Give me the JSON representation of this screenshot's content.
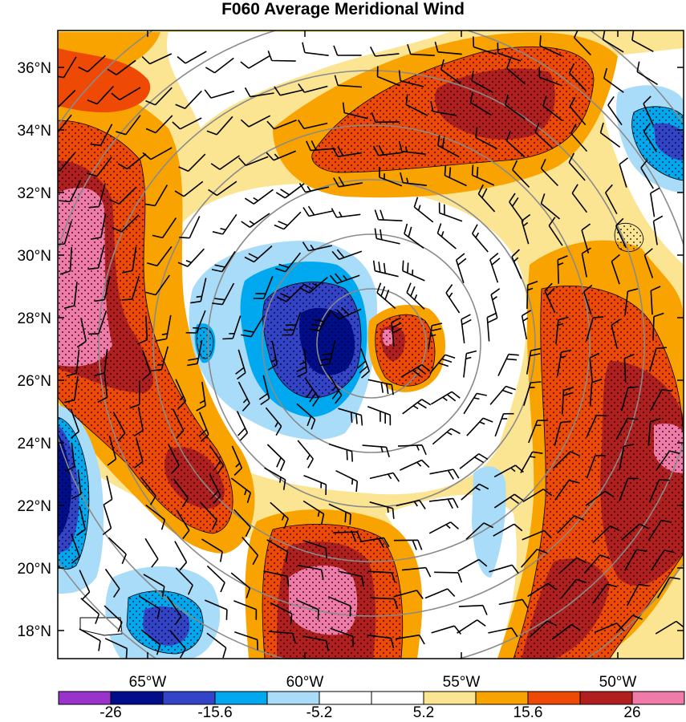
{
  "title": "F060 Average Meridional Wind",
  "map": {
    "lat_labels": [
      "36°N",
      "34°N",
      "32°N",
      "30°N",
      "28°N",
      "26°N",
      "24°N",
      "22°N",
      "20°N",
      "18°N"
    ],
    "lon_labels": [
      "65°W",
      "60°W",
      "55°W",
      "50°W"
    ]
  },
  "colorbar": {
    "labels": [
      "-26",
      "-15.6",
      "-5.2",
      "5.2",
      "15.6",
      "26"
    ],
    "colors": [
      "#9933cc",
      "#000e8c",
      "#3344c8",
      "#00a8f0",
      "#a8dcf8",
      "#ffffff",
      "#ffffff",
      "#fbe592",
      "#f9a300",
      "#ef4a05",
      "#b21f1f",
      "#f07ba8"
    ]
  },
  "colors": {
    "strong_positive": "#f07ba8",
    "positive_dark": "#b21f1f",
    "positive": "#ef4a05",
    "moderate_positive": "#f9a300",
    "weak_positive": "#fbe592",
    "weak_negative": "#a8dcf8",
    "negative": "#00a8f0",
    "moderate_negative": "#3344c8",
    "strong_negative": "#000e8c"
  }
}
